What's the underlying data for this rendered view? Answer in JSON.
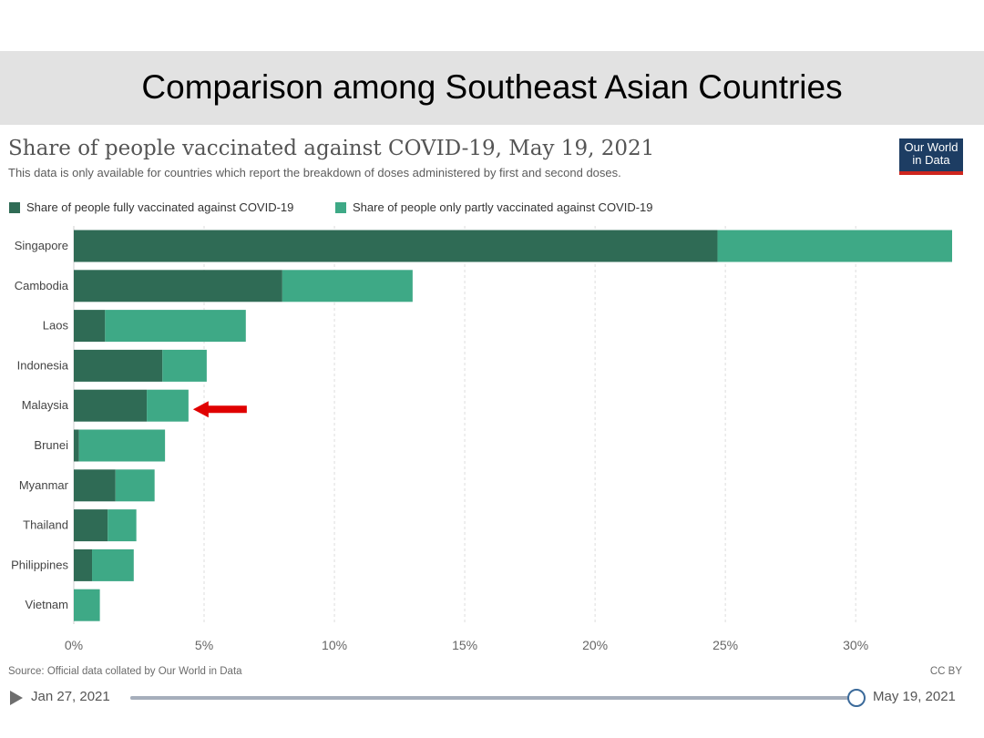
{
  "slide": {
    "title": "Comparison among Southeast Asian Countries"
  },
  "chart_header": {
    "title": "Share of people vaccinated against COVID-19, May 19, 2021",
    "subtitle": "This data is only available for countries which report the breakdown of doses administered by first and second doses."
  },
  "logo": {
    "line1": "Our World",
    "line2": "in Data"
  },
  "legend": {
    "full_label": "Share of people fully vaccinated against COVID-19",
    "partial_label": "Share of people only partly vaccinated against COVID-19"
  },
  "colors": {
    "fully": "#2f6b55",
    "partly": "#3ea986",
    "grid": "#dddddd",
    "highlight_arrow": "#e00000",
    "logo_bg": "#1d3d63",
    "logo_bar": "#ce261e"
  },
  "chart_data": {
    "type": "bar",
    "orientation": "horizontal",
    "stacked": true,
    "title": "Share of people vaccinated against COVID-19, May 19, 2021",
    "categories": [
      "Singapore",
      "Cambodia",
      "Laos",
      "Indonesia",
      "Malaysia",
      "Brunei",
      "Myanmar",
      "Thailand",
      "Philippines",
      "Vietnam"
    ],
    "series": [
      {
        "name": "Share of people fully vaccinated against COVID-19",
        "values": [
          24.7,
          8.0,
          1.2,
          3.4,
          2.8,
          0.2,
          1.6,
          1.3,
          0.7,
          0.0
        ]
      },
      {
        "name": "Share of people only partly vaccinated against COVID-19",
        "values": [
          9.0,
          5.0,
          5.4,
          1.7,
          1.6,
          3.3,
          1.5,
          1.1,
          1.6,
          1.0
        ]
      }
    ],
    "xlim": [
      0,
      33.7
    ],
    "x_ticks": [
      0,
      5,
      10,
      15,
      20,
      25,
      30
    ],
    "x_tick_labels": [
      "0%",
      "5%",
      "10%",
      "15%",
      "20%",
      "25%",
      "30%"
    ],
    "grid": true,
    "legend_position": "top-left",
    "annotations": [
      {
        "type": "arrow",
        "target": "Malaysia",
        "color": "#e00000"
      }
    ]
  },
  "footer": {
    "source": "Source: Official data collated by Our World in Data",
    "license": "CC BY"
  },
  "timeline": {
    "start_label": "Jan 27, 2021",
    "end_label": "May 19, 2021",
    "progress": 1.0
  }
}
